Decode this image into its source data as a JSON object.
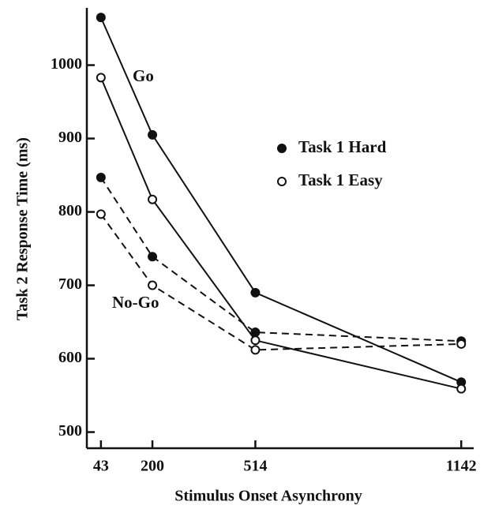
{
  "chart_data": {
    "type": "line",
    "x": [
      43,
      200,
      514,
      1142
    ],
    "xlim": [
      0,
      1180
    ],
    "xticks": [
      43,
      200,
      514,
      1142
    ],
    "ylim": [
      478,
      1078
    ],
    "yticks": [
      500,
      600,
      700,
      800,
      900,
      1000
    ],
    "xlabel": "Stimulus Onset Asynchrony",
    "ylabel": "Task 2 Response Time (ms)",
    "series": [
      {
        "name": "Task 1 Hard",
        "group": "Go",
        "marker": "filled",
        "dash": false,
        "color": "#111111",
        "values": [
          1065,
          905,
          690,
          568
        ]
      },
      {
        "name": "Task 1 Easy",
        "group": "Go",
        "marker": "open",
        "dash": false,
        "color": "#111111",
        "values": [
          983,
          817,
          625,
          559
        ]
      },
      {
        "name": "Task 1 Hard",
        "group": "No-Go",
        "marker": "filled",
        "dash": true,
        "color": "#111111",
        "values": [
          847,
          739,
          636,
          624
        ]
      },
      {
        "name": "Task 1 Easy",
        "group": "No-Go",
        "marker": "open",
        "dash": true,
        "color": "#111111",
        "values": [
          797,
          700,
          612,
          620
        ]
      }
    ]
  }
}
